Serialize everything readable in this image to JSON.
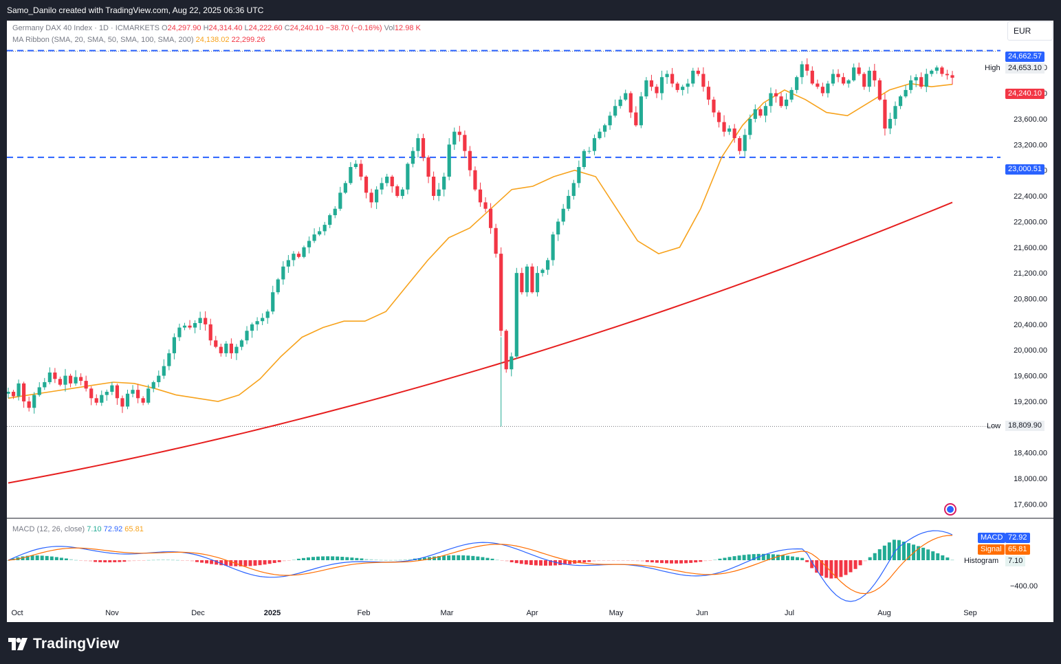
{
  "header": {
    "credit": "Samo_Danilo created with TradingView.com, Aug 22, 2025 06:36 UTC"
  },
  "legend": {
    "symbol": "Germany DAX 40 Index · 1D · ICMARKETS",
    "open_label": "O",
    "open": "24,297.90",
    "high_label": "H",
    "high": "24,314.40",
    "low_label": "L",
    "low": "24,222.60",
    "close_label": "C",
    "close": "24,240.10",
    "change": "−38.70 (−0.16%)",
    "vol_label": "Vol",
    "vol": "12.98 K",
    "ma_title": "MA Ribbon (SMA, 20, SMA, 50, SMA, 100, SMA, 200)",
    "ma20_value": "24,138.02",
    "ma200_value": "22,299.26"
  },
  "currency": "EUR",
  "price_badges": {
    "top": "24,662.57",
    "high_label": "High",
    "high": "24,653.10",
    "last": "24,240.10",
    "support": "23,000.51",
    "low_label": "Low",
    "low": "18,809.90"
  },
  "macd_legend": {
    "title": "MACD (12, 26, close)",
    "hist": "7.10",
    "macd": "72.92",
    "signal": "65.81"
  },
  "macd_badges": {
    "macd_label": "MACD",
    "macd": "72.92",
    "signal_label": "Signal",
    "signal": "65.81",
    "hist_label": "Histogram",
    "hist": "7.10",
    "axis_tick": "−400.00"
  },
  "logo_text": "TradingView",
  "colors": {
    "up": "#22ab94",
    "down": "#f23645",
    "ma20": "#f7a21b",
    "ma200": "#e61e1e",
    "level": "#2962ff",
    "macd": "#2962ff",
    "signal": "#ff6d00"
  },
  "chart_data": {
    "type": "candlestick",
    "x_axis_labels": [
      "Oct",
      "Nov",
      "Dec",
      "2025",
      "Feb",
      "Mar",
      "Apr",
      "May",
      "Jun",
      "Jul",
      "Aug",
      "Sep"
    ],
    "y_axis_labels": [
      "24,400.00",
      "24,000.00",
      "23,600.00",
      "23,200.00",
      "22,800.00",
      "22,400.00",
      "22,000.00",
      "21,600.00",
      "21,200.00",
      "20,800.00",
      "20,400.00",
      "20,000.00",
      "19,600.00",
      "19,200.00",
      "18,400.00",
      "18,000.00",
      "17,600.00"
    ],
    "y_range": [
      17380,
      25130
    ],
    "levels": [
      24662.57,
      23000.51
    ],
    "high": 24653.1,
    "low": 18809.9,
    "ma20_last": 24138.02,
    "ma200_last": 22299.26,
    "close_series": [
      19350,
      19280,
      19480,
      19200,
      19100,
      19300,
      19420,
      19500,
      19650,
      19550,
      19460,
      19600,
      19480,
      19580,
      19520,
      19400,
      19250,
      19180,
      19300,
      19350,
      19450,
      19250,
      19120,
      19320,
      19380,
      19250,
      19180,
      19400,
      19500,
      19600,
      19750,
      19950,
      20200,
      20350,
      20380,
      20350,
      20420,
      20500,
      20400,
      20150,
      20050,
      19950,
      20100,
      19950,
      20050,
      20150,
      20300,
      20400,
      20450,
      20500,
      20600,
      20900,
      21100,
      21300,
      21400,
      21500,
      21450,
      21600,
      21700,
      21800,
      21850,
      21950,
      22100,
      22200,
      22450,
      22600,
      22850,
      22900,
      22700,
      22450,
      22300,
      22500,
      22600,
      22700,
      22550,
      22400,
      22500,
      22900,
      23100,
      23300,
      23000,
      22700,
      22400,
      22500,
      22700,
      23200,
      23400,
      23350,
      23100,
      22800,
      22500,
      22300,
      22200,
      21900,
      21500,
      20300,
      19700,
      19900,
      21200,
      20900,
      21300,
      20900,
      21200,
      21250,
      21400,
      21800,
      22000,
      22200,
      22400,
      22600,
      22850,
      23100,
      23100,
      23300,
      23400,
      23500,
      23650,
      23800,
      23900,
      24000,
      23700,
      23500,
      23950,
      24200,
      24100,
      24000,
      24250,
      24300,
      24150,
      24050,
      24100,
      24150,
      24350,
      24300,
      24100,
      23900,
      23700,
      23550,
      23400,
      23450,
      23300,
      23100,
      23350,
      23600,
      23750,
      23650,
      23800,
      24000,
      23950,
      23800,
      23900,
      24050,
      24250,
      24450,
      24350,
      24150,
      24100,
      24000,
      24150,
      24300,
      24250,
      24150,
      24200,
      24400,
      24300,
      24100,
      24350,
      24200,
      23900,
      23450,
      23600,
      23800,
      23950,
      24050,
      24200,
      24250,
      24100,
      24300,
      24350,
      24400,
      24300,
      24280,
      24240
    ],
    "ma20_series": [
      19250,
      19300,
      19350,
      19400,
      19450,
      19500,
      19480,
      19400,
      19300,
      19250,
      19200,
      19300,
      19550,
      19900,
      20200,
      20350,
      20450,
      20450,
      20600,
      21000,
      21400,
      21750,
      21900,
      22200,
      22500,
      22550,
      22700,
      22800,
      22700,
      22200,
      21700,
      21500,
      21600,
      22200,
      23000,
      23500,
      23850,
      24050,
      23900,
      23700,
      23650,
      23850,
      24050,
      24150,
      24100,
      24138
    ],
    "ma20_dates_idx": "every 4 bars",
    "ma200_range": [
      17930,
      22299.26
    ],
    "macd_legend_values": {
      "hist": 7.1,
      "macd": 72.92,
      "signal": 65.81
    }
  }
}
